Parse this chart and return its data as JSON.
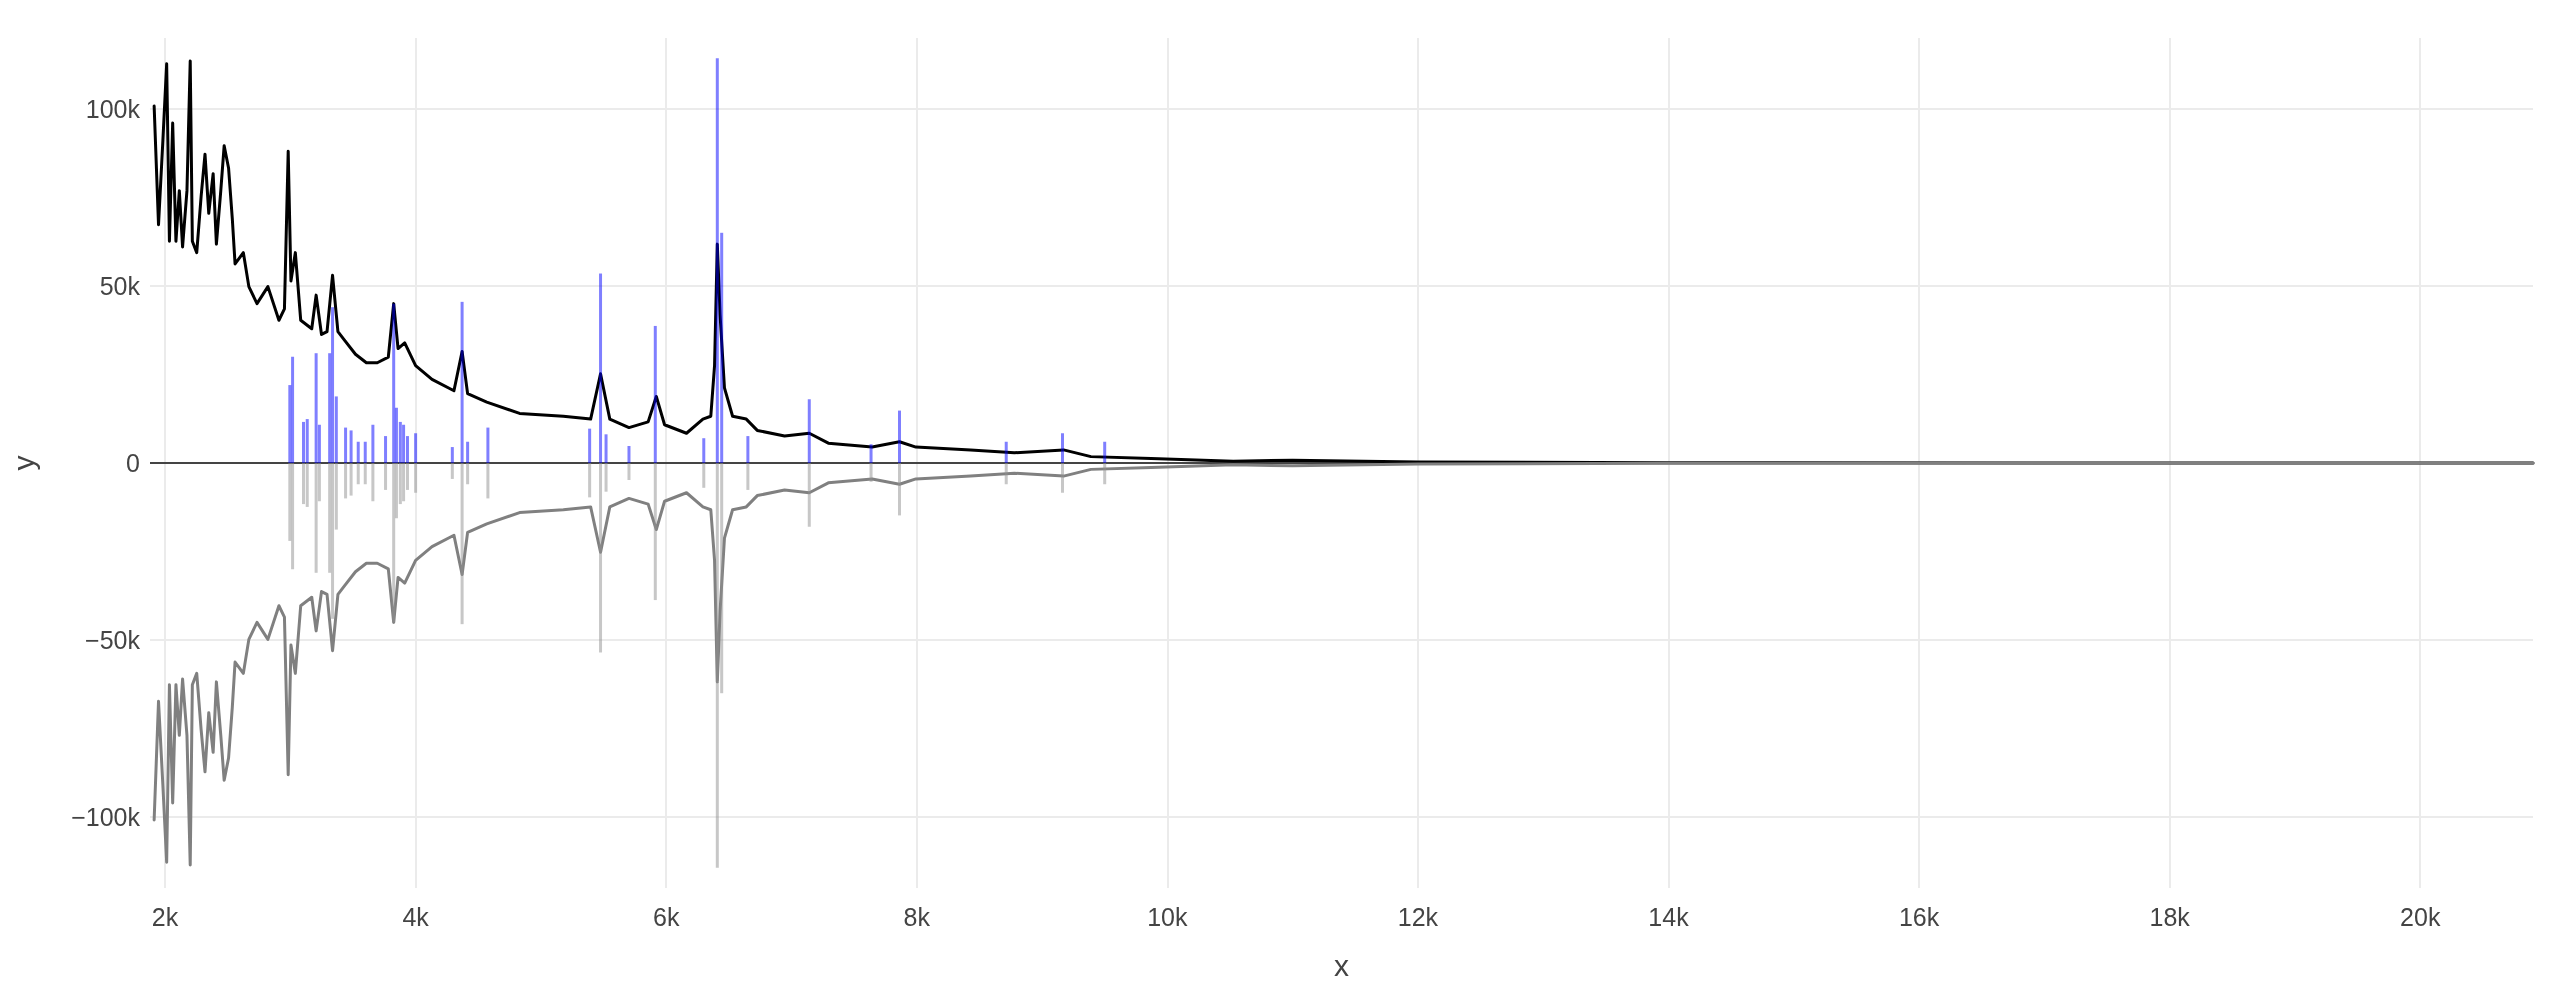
{
  "chart_data": {
    "type": "line",
    "stacked": true,
    "xlabel": "x",
    "ylabel": "y",
    "grid": true,
    "marker": "none",
    "line_style": "solid",
    "xlim": [
      1880,
      20900
    ],
    "ylim": [
      -120000,
      120000
    ],
    "xticks": [
      {
        "value": 2000,
        "label": "2k"
      },
      {
        "value": 4000,
        "label": "4k"
      },
      {
        "value": 6000,
        "label": "6k"
      },
      {
        "value": 8000,
        "label": "8k"
      },
      {
        "value": 10000,
        "label": "10k"
      },
      {
        "value": 12000,
        "label": "12k"
      },
      {
        "value": 14000,
        "label": "14k"
      },
      {
        "value": 16000,
        "label": "16k"
      },
      {
        "value": 18000,
        "label": "18k"
      },
      {
        "value": 20000,
        "label": "20k"
      }
    ],
    "yticks": [
      {
        "value": -100000,
        "label": "−100k"
      },
      {
        "value": -50000,
        "label": "−50k"
      },
      0,
      {
        "value": 50000,
        "label": "50k"
      },
      {
        "value": 100000,
        "label": "100k"
      }
    ],
    "ref_lines": [
      {
        "axis": "y",
        "value": 0,
        "color": "#444444"
      }
    ],
    "series": [
      {
        "type": "bar",
        "color": "#0000ff",
        "x": [
          2996,
          3018,
          3105,
          3135,
          3206,
          3232,
          3314,
          3337,
          3367,
          3441,
          3485,
          3542,
          3598,
          3659,
          3760,
          3825,
          3847,
          3878,
          3904,
          3935,
          4000,
          4293,
          4371,
          4415,
          4577,
          5389,
          5476,
          5520,
          5703,
          5913,
          6300,
          6408,
          6443,
          6652,
          7142,
          7635,
          7862,
          8714,
          9163,
          9500
        ],
        "values": [
          22000,
          30000,
          11600,
          12400,
          31000,
          10800,
          31000,
          44000,
          18800,
          10000,
          9200,
          6000,
          6000,
          10800,
          7600,
          45000,
          15600,
          11600,
          10800,
          7600,
          8400,
          4500,
          45500,
          6000,
          10000,
          9700,
          53500,
          8100,
          4800,
          38700,
          7000,
          114300,
          65000,
          7600,
          18000,
          5300,
          14800,
          6000,
          8400,
          6000
        ]
      },
      {
        "type": "bar",
        "color": "#909090",
        "x": [
          2996,
          3018,
          3105,
          3135,
          3206,
          3232,
          3314,
          3337,
          3367,
          3441,
          3485,
          3542,
          3598,
          3659,
          3760,
          3825,
          3847,
          3878,
          3904,
          3935,
          4000,
          4293,
          4371,
          4415,
          4577,
          5389,
          5476,
          5520,
          5703,
          5913,
          6300,
          6408,
          6443,
          6652,
          7142,
          7635,
          7862,
          8714,
          9163,
          9500
        ],
        "values": [
          -22000,
          -30000,
          -11600,
          -12400,
          -31000,
          -10800,
          -31000,
          -44000,
          -18800,
          -10000,
          -9200,
          -6000,
          -6000,
          -10800,
          -7600,
          -45000,
          -15600,
          -11600,
          -10800,
          -7600,
          -8400,
          -4500,
          -45500,
          -6000,
          -10000,
          -9700,
          -53500,
          -8100,
          -4800,
          -38700,
          -7000,
          -114300,
          -65000,
          -7600,
          -18000,
          -5300,
          -14800,
          -6000,
          -8400,
          -6000
        ]
      },
      {
        "color": "#000000",
        "x": [
          1913,
          1948,
          1983,
          2013,
          2035,
          2061,
          2087,
          2114,
          2140,
          2175,
          2201,
          2218,
          2253,
          2288,
          2319,
          2349,
          2384,
          2410,
          2445,
          2472,
          2507,
          2537,
          2559,
          2625,
          2669,
          2734,
          2821,
          2909,
          2953,
          2983,
          3005,
          3040,
          3083,
          3171,
          3206,
          3249,
          3293,
          3337,
          3380,
          3432,
          3520,
          3607,
          3694,
          3782,
          3825,
          3860,
          3913,
          4000,
          4131,
          4306,
          4371,
          4415,
          4568,
          4830,
          5179,
          5397,
          5476,
          5550,
          5703,
          5856,
          5921,
          5987,
          6162,
          6293,
          6356,
          6386,
          6408,
          6430,
          6465,
          6530,
          6639,
          6727,
          6945,
          7142,
          7294,
          7644,
          7862,
          7993,
          8430,
          8779,
          9172,
          9390,
          9871,
          10526,
          11000,
          12000,
          14000,
          17000,
          20900
        ],
        "values": [
          100800,
          67300,
          91200,
          112700,
          62600,
          96000,
          62600,
          76900,
          61000,
          76900,
          113500,
          62600,
          59400,
          75300,
          87200,
          70500,
          81700,
          61800,
          76900,
          89600,
          83300,
          68900,
          56200,
          59400,
          49800,
          45000,
          49800,
          40300,
          43500,
          88000,
          51400,
          59400,
          40300,
          37900,
          47400,
          36300,
          37100,
          53000,
          37100,
          34700,
          30700,
          28300,
          28300,
          29900,
          45000,
          32300,
          33900,
          27500,
          23600,
          20400,
          31500,
          19600,
          17200,
          14000,
          13200,
          12400,
          25200,
          12400,
          10000,
          11600,
          18800,
          10800,
          8400,
          12400,
          13200,
          27500,
          61800,
          41900,
          21200,
          13200,
          12400,
          9200,
          7600,
          8400,
          5600,
          4500,
          6000,
          4500,
          3700,
          2900,
          3700,
          1800,
          1300,
          500,
          800,
          300,
          100,
          0,
          0
        ]
      },
      {
        "color": "#808080",
        "x": [
          1913,
          1948,
          1983,
          2013,
          2035,
          2061,
          2087,
          2114,
          2140,
          2175,
          2201,
          2218,
          2253,
          2288,
          2319,
          2349,
          2384,
          2410,
          2445,
          2472,
          2507,
          2537,
          2559,
          2625,
          2669,
          2734,
          2821,
          2909,
          2953,
          2983,
          3005,
          3040,
          3083,
          3171,
          3206,
          3249,
          3293,
          3337,
          3380,
          3432,
          3520,
          3607,
          3694,
          3782,
          3825,
          3860,
          3913,
          4000,
          4131,
          4306,
          4371,
          4415,
          4568,
          4830,
          5179,
          5397,
          5476,
          5550,
          5703,
          5856,
          5921,
          5987,
          6162,
          6293,
          6356,
          6386,
          6408,
          6430,
          6465,
          6530,
          6639,
          6727,
          6945,
          7142,
          7294,
          7644,
          7862,
          7993,
          8430,
          8779,
          9172,
          9390,
          9871,
          10526,
          11000,
          12000,
          14000,
          17000,
          20900
        ],
        "values": [
          -100800,
          -67300,
          -91200,
          -112700,
          -62600,
          -96000,
          -62600,
          -76900,
          -61000,
          -76900,
          -113500,
          -62600,
          -59400,
          -75300,
          -87200,
          -70500,
          -81700,
          -61800,
          -76900,
          -89600,
          -83300,
          -68900,
          -56200,
          -59400,
          -49800,
          -45000,
          -49800,
          -40300,
          -43500,
          -88000,
          -51400,
          -59400,
          -40300,
          -37900,
          -47400,
          -36300,
          -37100,
          -53000,
          -37100,
          -34700,
          -30700,
          -28300,
          -28300,
          -29900,
          -45000,
          -32300,
          -33900,
          -27500,
          -23600,
          -20400,
          -31500,
          -19600,
          -17200,
          -14000,
          -13200,
          -12400,
          -25200,
          -12400,
          -10000,
          -11600,
          -18800,
          -10800,
          -8400,
          -12400,
          -13200,
          -27500,
          -61800,
          -41900,
          -21200,
          -13200,
          -12400,
          -9200,
          -7600,
          -8400,
          -5600,
          -4500,
          -6000,
          -4500,
          -3700,
          -2900,
          -3700,
          -1800,
          -1300,
          -500,
          -800,
          -300,
          -100,
          0,
          0
        ]
      }
    ]
  }
}
